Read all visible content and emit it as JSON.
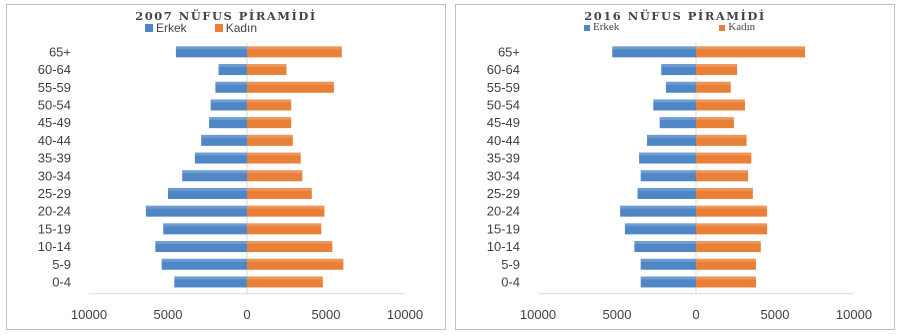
{
  "colors": {
    "male": "#4f86c6",
    "female": "#ea7f37",
    "axis": "#d9d9d9",
    "text": "#404040"
  },
  "chart_data": [
    {
      "type": "bar",
      "title": "2007 NÜFUS PİRAMİDİ",
      "legend_placement": "top",
      "legend": [
        "Erkek",
        "Kadın"
      ],
      "categories": [
        "65+",
        "60-64",
        "55-59",
        "50-54",
        "45-49",
        "40-44",
        "35-39",
        "30-34",
        "25-29",
        "20-24",
        "15-19",
        "10-14",
        "5-9",
        "0-4"
      ],
      "series": [
        {
          "name": "Erkek",
          "values": [
            4500,
            1800,
            2000,
            2300,
            2400,
            2900,
            3300,
            4100,
            5000,
            6400,
            5300,
            5800,
            5400,
            4600
          ]
        },
        {
          "name": "Kadın",
          "values": [
            6000,
            2500,
            5500,
            2800,
            2800,
            2900,
            3400,
            3500,
            4100,
            4900,
            4700,
            5400,
            6100,
            4800
          ]
        }
      ],
      "xlim": [
        -10000,
        10000
      ],
      "xticks": [
        "10000",
        "5000",
        "0",
        "5000",
        "10000"
      ],
      "grid": false
    },
    {
      "type": "bar",
      "title": "2016 NÜFUS PİRAMİDİ",
      "legend_placement": "top",
      "legend": [
        "Erkek",
        "Kadın"
      ],
      "categories": [
        "65+",
        "60-64",
        "55-59",
        "50-54",
        "45-49",
        "40-44",
        "35-39",
        "30-34",
        "25-29",
        "20-24",
        "15-19",
        "10-14",
        "5-9",
        "0-4"
      ],
      "series": [
        {
          "name": "Erkek",
          "values": [
            5300,
            2200,
            1900,
            2700,
            2300,
            3100,
            3600,
            3500,
            3700,
            4800,
            4500,
            3900,
            3500,
            3500
          ]
        },
        {
          "name": "Kadın",
          "values": [
            6900,
            2600,
            2200,
            3100,
            2400,
            3200,
            3500,
            3300,
            3600,
            4500,
            4500,
            4100,
            3800,
            3800
          ]
        }
      ],
      "xlim": [
        -10000,
        10000
      ],
      "xticks": [
        "10000",
        "5000",
        "0",
        "5000",
        "10000"
      ],
      "grid": false
    }
  ]
}
